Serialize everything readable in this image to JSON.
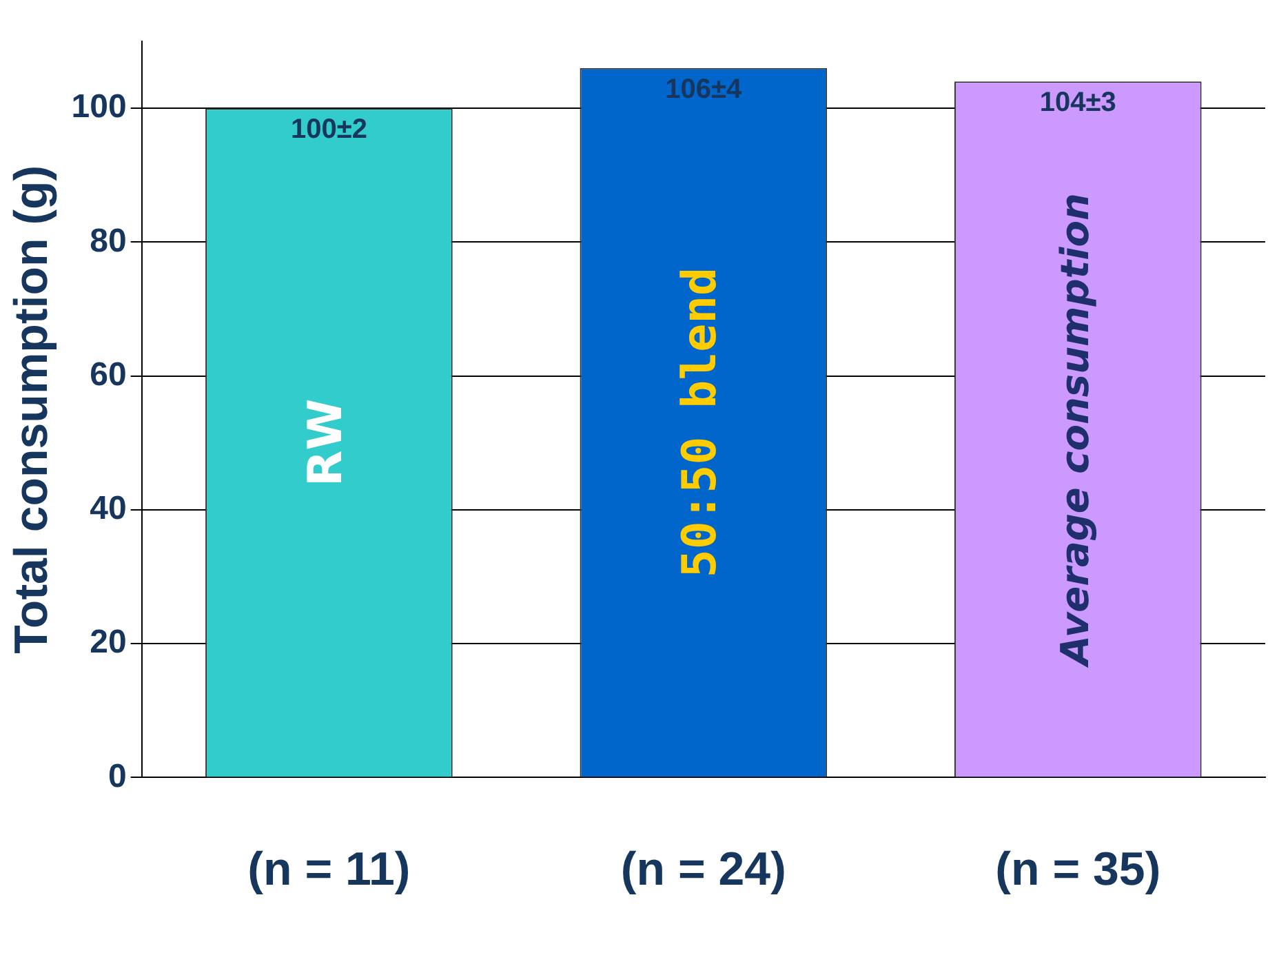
{
  "chart_data": {
    "type": "bar",
    "ylabel": "Total consumption (g)",
    "categories": [
      "(n = 11)",
      "(n = 24)",
      "(n = 35)"
    ],
    "values": [
      100,
      106,
      104
    ],
    "colors": [
      "#33cccc",
      "#0066cc",
      "#cc99ff"
    ],
    "value_labels": [
      "100±2",
      "106±4",
      "104±3"
    ],
    "annotations": [
      "RW",
      "50:50 blend",
      "Average consumption"
    ],
    "ylim": [
      0,
      110
    ],
    "yticks": [
      0,
      20,
      40,
      60,
      80,
      100
    ],
    "grid": "y",
    "legend": false
  }
}
